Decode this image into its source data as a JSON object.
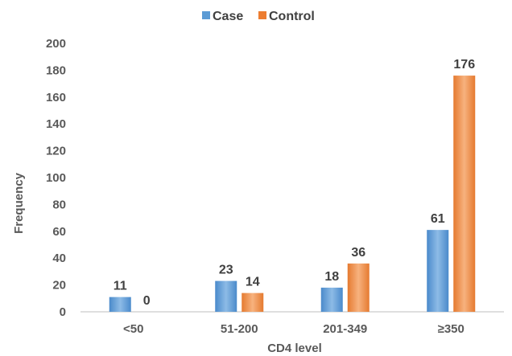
{
  "chart_data": {
    "type": "bar",
    "categories": [
      "<50",
      "51-200",
      "201-349",
      "≥350"
    ],
    "series": [
      {
        "name": "Case",
        "values": [
          11,
          23,
          18,
          61
        ],
        "color": "#5B9BD5"
      },
      {
        "name": "Control",
        "values": [
          0,
          14,
          36,
          176
        ],
        "color": "#ED7D31"
      }
    ],
    "xlabel": "CD4 level",
    "ylabel": "Frequency",
    "ylim": [
      0,
      200
    ],
    "yticks": [
      0,
      20,
      40,
      60,
      80,
      100,
      120,
      140,
      160,
      180,
      200
    ],
    "grid": false,
    "legend_position": "top-center",
    "data_labels": true
  }
}
